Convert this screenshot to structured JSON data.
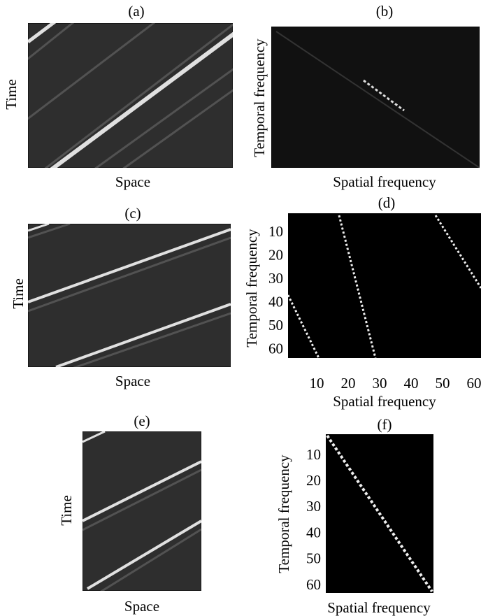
{
  "panels": [
    {
      "label": "(a)",
      "x_label": "Space",
      "y_label": "Time"
    },
    {
      "label": "(b)",
      "x_label": "Spatial frequency",
      "y_label": "Temporal frequency"
    },
    {
      "label": "(c)",
      "x_label": "Space",
      "y_label": "Time"
    },
    {
      "label": "(d)",
      "x_label": "Spatial frequency",
      "y_label": "Temporal frequency",
      "x_ticks": [
        10,
        20,
        30,
        40,
        50,
        60
      ],
      "y_ticks": [
        10,
        20,
        30,
        40,
        50,
        60
      ]
    },
    {
      "label": "(e)",
      "x_label": "Space",
      "y_label": "Time"
    },
    {
      "label": "(f)",
      "x_label": "Spatial frequency",
      "y_label": "Temporal frequency",
      "y_ticks": [
        10,
        20,
        30,
        40,
        50,
        60
      ]
    }
  ]
}
